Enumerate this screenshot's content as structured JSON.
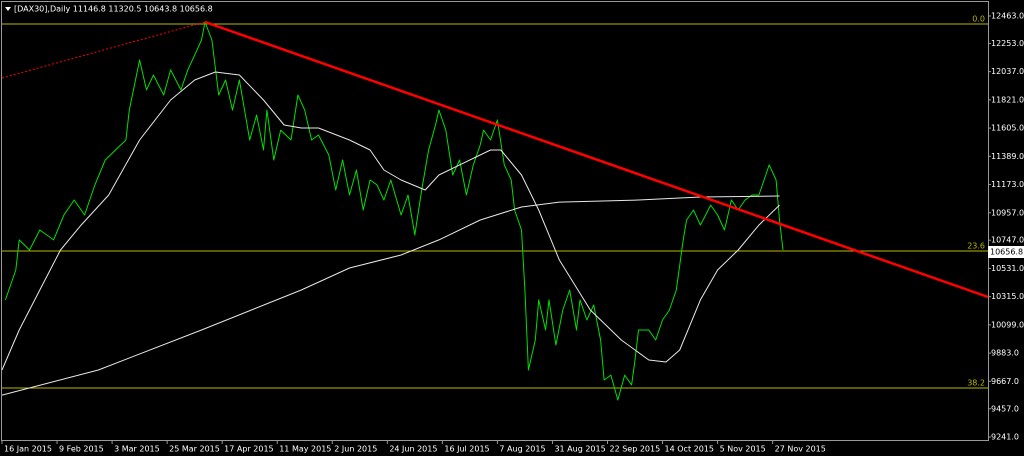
{
  "chart_data": {
    "type": "line",
    "title": "[DAX30],Daily  11146.8 11320.5 10643.8 10656.8",
    "xlim": [
      0,
      286.6
    ],
    "ylim": [
      9218,
      12570
    ],
    "xticks": [
      {
        "value": 0,
        "label": "16 Jan 2015"
      },
      {
        "value": 16,
        "label": "9 Feb 2015"
      },
      {
        "value": 32,
        "label": "3 Mar 2015"
      },
      {
        "value": 48,
        "label": "25 Mar 2015"
      },
      {
        "value": 64,
        "label": "17 Apr 2015"
      },
      {
        "value": 80,
        "label": "11 May 2015"
      },
      {
        "value": 96,
        "label": "2 Jun 2015"
      },
      {
        "value": 112,
        "label": "24 Jun 2015"
      },
      {
        "value": 128,
        "label": "16 Jul 2015"
      },
      {
        "value": 144,
        "label": "7 Aug 2015"
      },
      {
        "value": 160,
        "label": "31 Aug 2015"
      },
      {
        "value": 176,
        "label": "22 Sep 2015"
      },
      {
        "value": 192,
        "label": "14 Oct 2015"
      },
      {
        "value": 208,
        "label": "5 Nov 2015"
      },
      {
        "value": 224,
        "label": "27 Nov 2015"
      }
    ],
    "yticks": [
      {
        "value": 12463,
        "label": "12463.0"
      },
      {
        "value": 12253,
        "label": "12253.0"
      },
      {
        "value": 12037,
        "label": "12037.0"
      },
      {
        "value": 11821,
        "label": "11821.0"
      },
      {
        "value": 11605,
        "label": "11605.0"
      },
      {
        "value": 11389,
        "label": "11389.0"
      },
      {
        "value": 11173,
        "label": "11173.0"
      },
      {
        "value": 10957,
        "label": "10957.0"
      },
      {
        "value": 10747,
        "label": "10747.0"
      },
      {
        "value": 10531,
        "label": "10531.0"
      },
      {
        "value": 10315,
        "label": "10315.0"
      },
      {
        "value": 10099,
        "label": "10099.0"
      },
      {
        "value": 9883,
        "label": "9883.0"
      },
      {
        "value": 9667,
        "label": "9667.0"
      },
      {
        "value": 9457,
        "label": "9457.0"
      },
      {
        "value": 9241,
        "label": "9241.0"
      }
    ],
    "grid": false,
    "series": [
      {
        "color": "#00e000",
        "width": 1,
        "x": [
          1,
          4,
          5,
          8,
          11,
          15,
          18,
          21,
          24,
          27,
          30,
          33,
          36,
          37,
          40,
          42,
          44,
          47,
          49,
          52,
          54,
          56,
          58,
          59,
          61,
          63,
          65,
          67,
          69,
          72,
          74,
          76,
          77,
          79,
          81,
          84,
          86,
          88,
          90,
          92,
          95,
          97,
          99,
          101,
          103,
          105,
          107,
          109,
          111,
          113,
          116,
          118,
          120,
          122,
          124,
          126,
          127,
          129,
          131,
          133,
          135,
          137,
          139,
          140,
          142,
          144,
          146,
          148,
          149,
          151,
          152,
          153,
          155,
          156,
          158,
          159,
          161,
          163,
          165,
          167,
          168,
          170,
          172,
          174,
          175,
          177,
          179,
          181,
          183,
          184,
          185,
          188,
          190,
          192,
          194,
          196,
          198,
          199,
          201,
          203,
          206,
          208,
          210,
          212,
          214,
          216,
          218,
          220,
          222,
          223,
          225,
          226,
          227
        ],
        "values": [
          10290,
          10519,
          10749,
          10672,
          10825,
          10749,
          10940,
          11055,
          10940,
          11170,
          11361,
          11437,
          11514,
          11743,
          12126,
          11897,
          12011,
          11858,
          12050,
          11897,
          12050,
          12164,
          12279,
          12417,
          12279,
          11858,
          11973,
          11743,
          11973,
          11514,
          11705,
          11437,
          11743,
          11361,
          11590,
          11514,
          11858,
          11743,
          11514,
          11552,
          11399,
          11131,
          11361,
          11093,
          11284,
          10978,
          11208,
          11170,
          11055,
          11208,
          10940,
          11093,
          10787,
          11131,
          11437,
          11629,
          11743,
          11590,
          11246,
          11361,
          11093,
          11323,
          11476,
          11590,
          11514,
          11667,
          11323,
          11208,
          10978,
          10825,
          10366,
          9754,
          9983,
          10290,
          10060,
          10290,
          9945,
          10213,
          10366,
          10060,
          10290,
          10136,
          10251,
          9983,
          9677,
          9715,
          9524,
          9715,
          9639,
          9830,
          10060,
          10060,
          9983,
          10136,
          10213,
          10366,
          10749,
          10902,
          10978,
          10863,
          11016,
          10940,
          10825,
          11055,
          10978,
          11055,
          11093,
          11093,
          11246,
          11323,
          11208,
          10902,
          10672
        ]
      },
      {
        "color": "#e8e8e8",
        "width": 1,
        "x": [
          0,
          5,
          11,
          17,
          23,
          31,
          40,
          49,
          56,
          62,
          69,
          76,
          82,
          87,
          92,
          101,
          107,
          111,
          116,
          123,
          127,
          133,
          142,
          145,
          151,
          156,
          162,
          171,
          180,
          188,
          193,
          197,
          203,
          208,
          214,
          220,
          226
        ],
        "values": [
          9754,
          10060,
          10366,
          10672,
          10863,
          11093,
          11514,
          11820,
          11973,
          12034,
          12011,
          11820,
          11629,
          11606,
          11606,
          11514,
          11437,
          11284,
          11208,
          11131,
          11246,
          11323,
          11437,
          11437,
          11246,
          10978,
          10596,
          10213,
          9983,
          9830,
          9815,
          9907,
          10290,
          10519,
          10672,
          10863,
          11016
        ]
      },
      {
        "color": "#e8e8e8",
        "width": 1,
        "x": [
          0,
          28,
          58,
          87,
          101,
          116,
          127,
          139,
          151,
          162,
          185,
          203,
          226
        ],
        "values": [
          9562,
          9754,
          10060,
          10366,
          10534,
          10634,
          10749,
          10902,
          11001,
          11039,
          11055,
          11078,
          11085
        ]
      },
      {
        "color": "#ff0000",
        "width": 2.5,
        "x": [
          59,
          286.6
        ],
        "values": [
          12417,
          10312
        ]
      },
      {
        "color": "#ff0000",
        "width": 1,
        "dash": true,
        "x": [
          0,
          59
        ],
        "values": [
          11988,
          12417
        ]
      }
    ],
    "levels": [
      {
        "value": 12402,
        "label": "0.0"
      },
      {
        "value": 10664,
        "label": "23.6"
      },
      {
        "value": 9616,
        "label": "38.2"
      }
    ],
    "level_color": "#b8b800",
    "last_price": 10656.8
  }
}
